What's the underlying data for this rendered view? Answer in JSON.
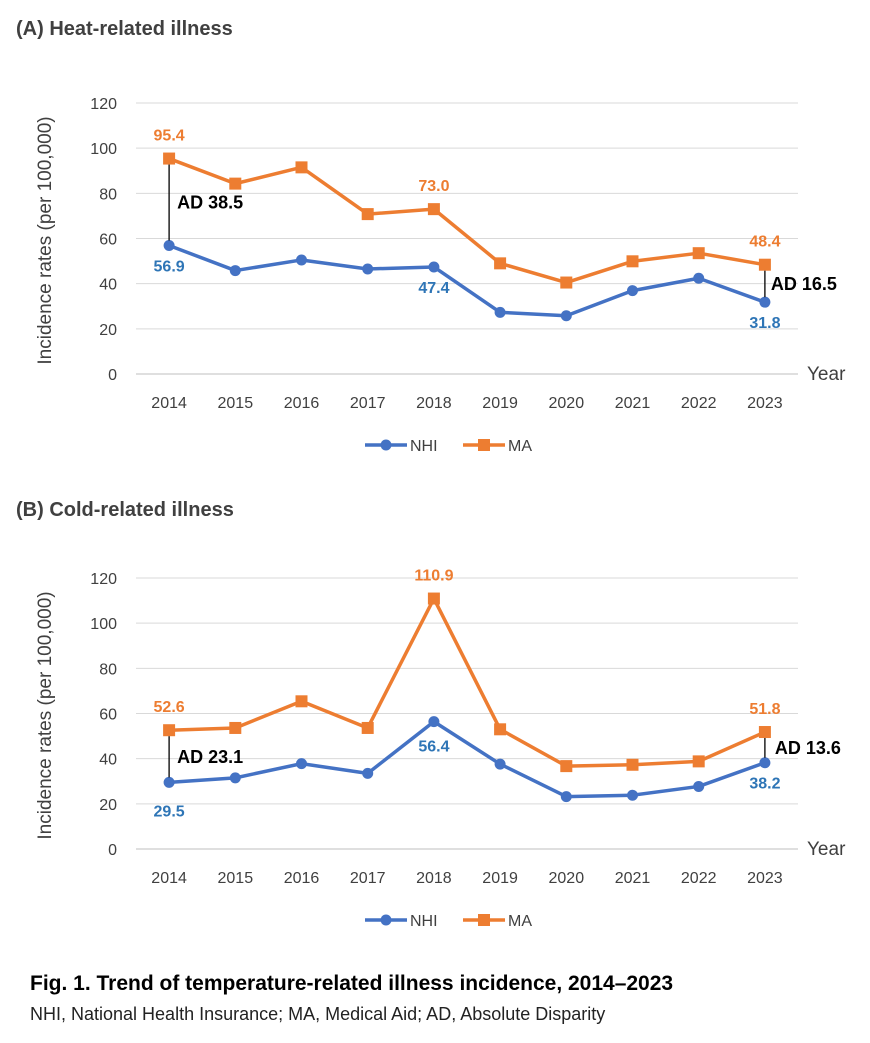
{
  "figure": {
    "caption": "Fig. 1. Trend of temperature-related illness incidence, 2014–2023",
    "note": "NHI, National Health Insurance; MA, Medical Aid; AD, Absolute Disparity"
  },
  "colors": {
    "NHI": "#4472c4",
    "MA": "#ed7d31",
    "nhi_label": "#2e75b6",
    "grid": "#d9d9d9",
    "axis_text": "#404040"
  },
  "chart_data": [
    {
      "type": "line",
      "title": "(A) Heat-related illness",
      "xlabel": "Year",
      "ylabel": "Incidence rates (per 100,000)",
      "ylim": [
        0,
        120
      ],
      "yticks": [
        0,
        20,
        40,
        60,
        80,
        100,
        120
      ],
      "categories": [
        "2014",
        "2015",
        "2016",
        "2017",
        "2018",
        "2019",
        "2020",
        "2021",
        "2022",
        "2023"
      ],
      "series": [
        {
          "name": "NHI",
          "values": [
            56.9,
            45.8,
            50.5,
            46.5,
            47.4,
            27.3,
            25.8,
            36.9,
            42.4,
            31.8
          ],
          "marker": "circle"
        },
        {
          "name": "MA",
          "values": [
            95.4,
            84.3,
            91.5,
            70.8,
            73.0,
            49.0,
            40.5,
            49.9,
            53.5,
            48.4
          ],
          "marker": "square"
        }
      ],
      "data_labels": [
        {
          "series": "MA",
          "index": 0,
          "text": "95.4"
        },
        {
          "series": "MA",
          "index": 4,
          "text": "73.0"
        },
        {
          "series": "MA",
          "index": 9,
          "text": "48.4"
        },
        {
          "series": "NHI",
          "index": 0,
          "text": "56.9"
        },
        {
          "series": "NHI",
          "index": 4,
          "text": "47.4"
        },
        {
          "series": "NHI",
          "index": 9,
          "text": "31.8"
        }
      ],
      "disparities": [
        {
          "index": 0,
          "text": "AD 38.5"
        },
        {
          "index": 9,
          "text": "AD 16.5"
        }
      ],
      "legend": "bottom",
      "grid": true
    },
    {
      "type": "line",
      "title": "(B) Cold-related illness",
      "xlabel": "Year",
      "ylabel": "Incidence rates (per 100,000)",
      "ylim": [
        0,
        120
      ],
      "yticks": [
        0,
        20,
        40,
        60,
        80,
        100,
        120
      ],
      "categories": [
        "2014",
        "2015",
        "2016",
        "2017",
        "2018",
        "2019",
        "2020",
        "2021",
        "2022",
        "2023"
      ],
      "series": [
        {
          "name": "NHI",
          "values": [
            29.5,
            31.5,
            37.8,
            33.5,
            56.4,
            37.6,
            23.2,
            23.8,
            27.7,
            38.2
          ],
          "marker": "circle"
        },
        {
          "name": "MA",
          "values": [
            52.6,
            53.6,
            65.4,
            53.6,
            110.9,
            53.0,
            36.7,
            37.3,
            38.8,
            51.8
          ],
          "marker": "square"
        }
      ],
      "data_labels": [
        {
          "series": "MA",
          "index": 0,
          "text": "52.6"
        },
        {
          "series": "MA",
          "index": 4,
          "text": "110.9"
        },
        {
          "series": "MA",
          "index": 9,
          "text": "51.8"
        },
        {
          "series": "NHI",
          "index": 0,
          "text": "29.5"
        },
        {
          "series": "NHI",
          "index": 4,
          "text": "56.4"
        },
        {
          "series": "NHI",
          "index": 9,
          "text": "38.2"
        }
      ],
      "disparities": [
        {
          "index": 0,
          "text": "AD 23.1"
        },
        {
          "index": 9,
          "text": "AD 13.6"
        }
      ],
      "legend": "bottom",
      "grid": true
    }
  ]
}
